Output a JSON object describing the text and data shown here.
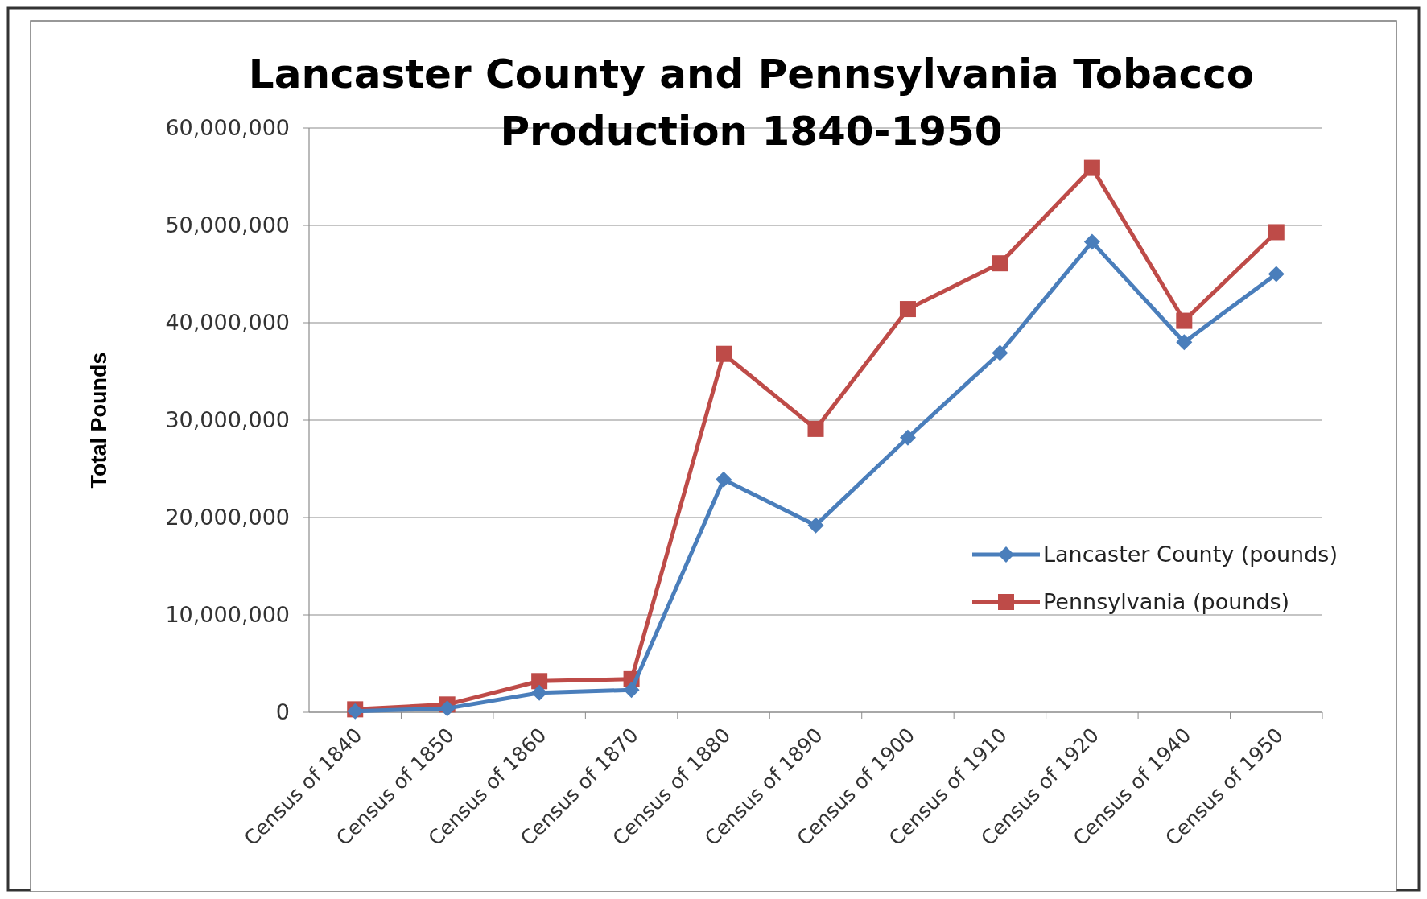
{
  "chart_data": {
    "type": "line",
    "title": "Lancaster County and Pennsylvania Tobacco Production 1840-1950",
    "ylabel": "Total Pounds",
    "categories": [
      "Census of 1840",
      "Census of 1850",
      "Census of 1860",
      "Census of 1870",
      "Census of 1880",
      "Census of 1890",
      "Census of 1900",
      "Census of 1910",
      "Census of 1920",
      "Census of 1940",
      "Census of 1950"
    ],
    "series": [
      {
        "name": "Lancaster County (pounds)",
        "color": "#4a7ebb",
        "marker": "diamond",
        "values": [
          100000,
          400000,
          2000000,
          2300000,
          23900000,
          19200000,
          28200000,
          36900000,
          48300000,
          38000000,
          45000000
        ]
      },
      {
        "name": "Pennsylvania (pounds)",
        "color": "#be4b48",
        "marker": "square",
        "values": [
          300000,
          800000,
          3200000,
          3400000,
          36800000,
          29100000,
          41400000,
          46100000,
          55900000,
          40200000,
          49300000
        ]
      }
    ],
    "ylim": [
      0,
      60000000
    ],
    "yticks": [
      {
        "value": 0,
        "label": "0"
      },
      {
        "value": 10000000,
        "label": "10,000,000"
      },
      {
        "value": 20000000,
        "label": "20,000,000"
      },
      {
        "value": 30000000,
        "label": "30,000,000"
      },
      {
        "value": 40000000,
        "label": "40,000,000"
      },
      {
        "value": 50000000,
        "label": "50,000,000"
      },
      {
        "value": 60000000,
        "label": "60,000,000"
      }
    ],
    "grid": "y",
    "legend": "right",
    "line_style": "solid"
  }
}
